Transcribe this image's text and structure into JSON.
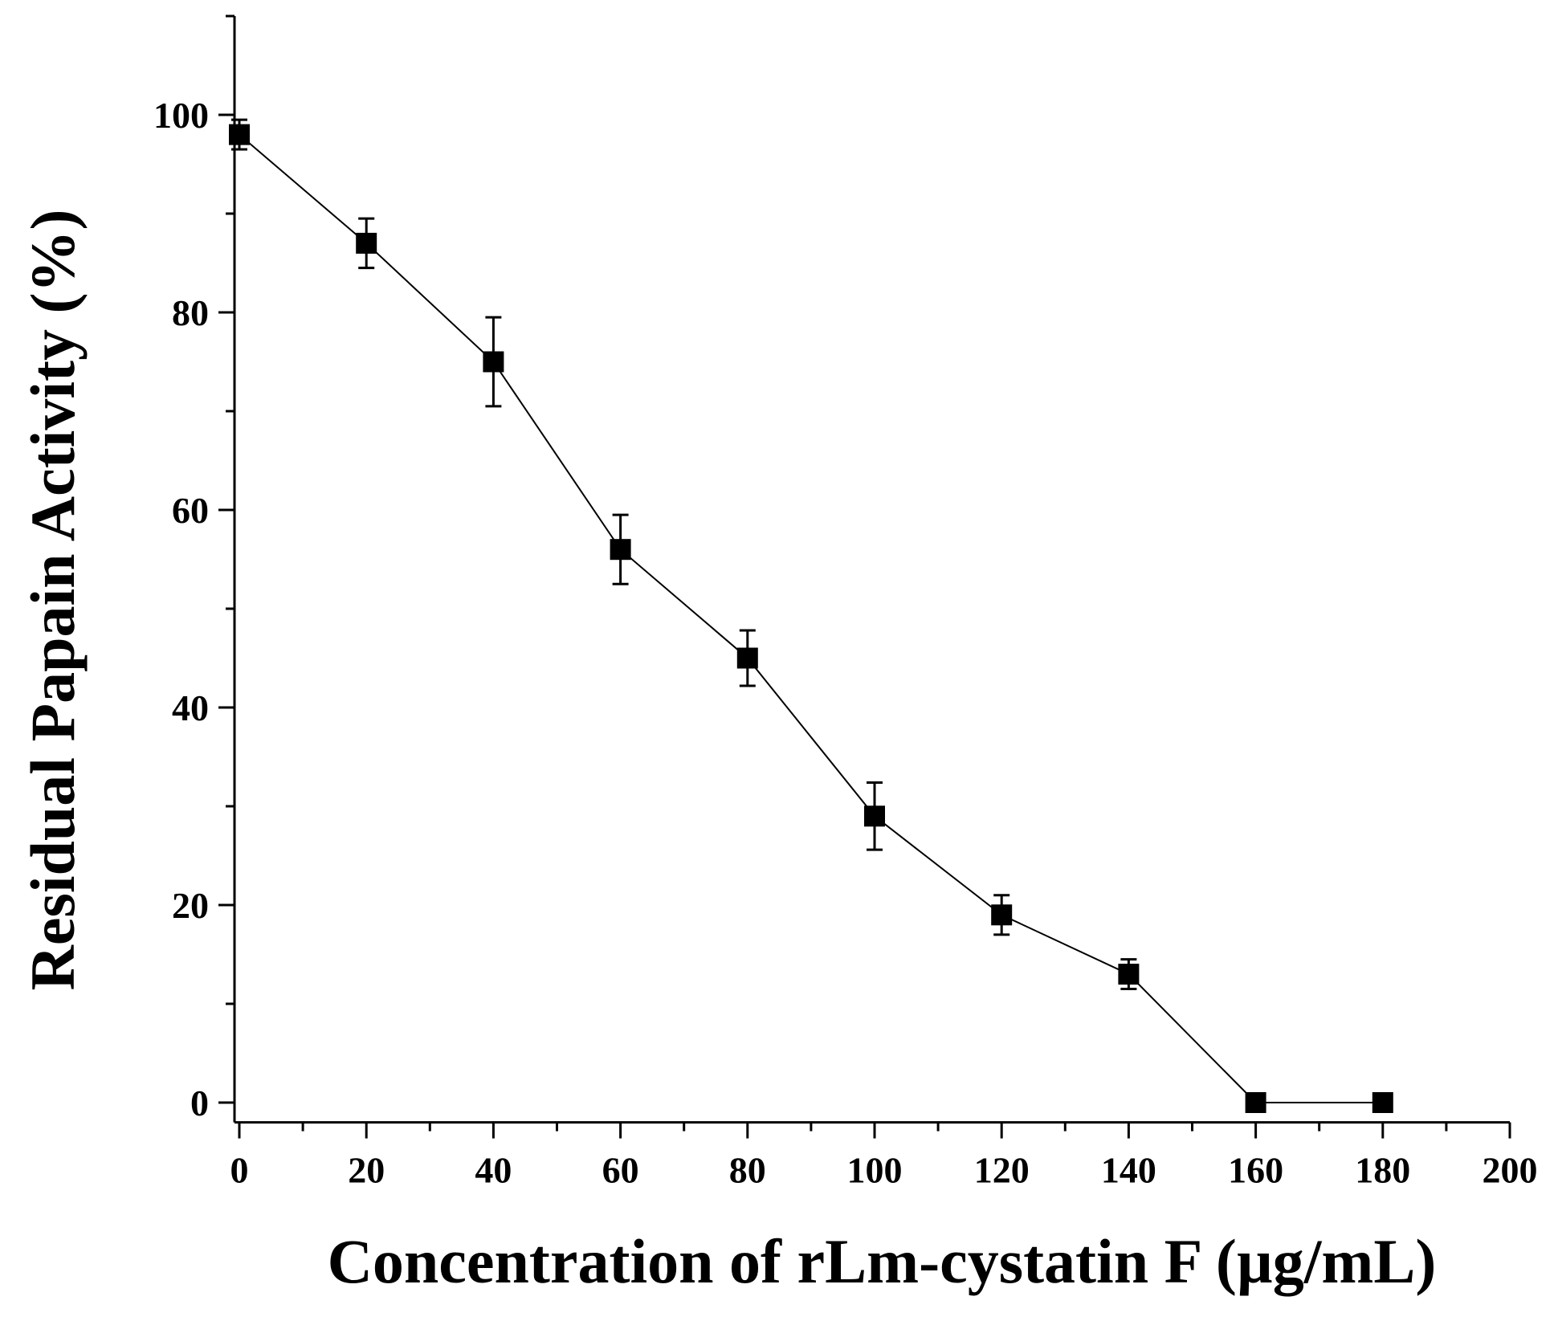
{
  "chart_data": {
    "type": "line",
    "title": "",
    "xlabel": "Concentration of rLm-cystatin F (µg/mL)",
    "ylabel": "Residual Papain Activity (%)",
    "xlim": [
      0,
      200
    ],
    "ylim": [
      -2,
      110
    ],
    "x_ticks": [
      0,
      20,
      40,
      60,
      80,
      100,
      120,
      140,
      160,
      180,
      200
    ],
    "y_ticks": [
      0,
      20,
      40,
      60,
      80,
      100
    ],
    "grid": false,
    "marker": "square",
    "series": [
      {
        "name": "Residual Papain Activity",
        "x": [
          0,
          20,
          40,
          60,
          80,
          100,
          120,
          140,
          160,
          180
        ],
        "y": [
          98,
          87,
          75,
          56,
          45,
          29,
          19,
          13,
          0,
          0
        ],
        "error": [
          1.5,
          2.5,
          4.5,
          3.5,
          2.8,
          3.4,
          2.0,
          1.5,
          0,
          0
        ]
      }
    ]
  }
}
